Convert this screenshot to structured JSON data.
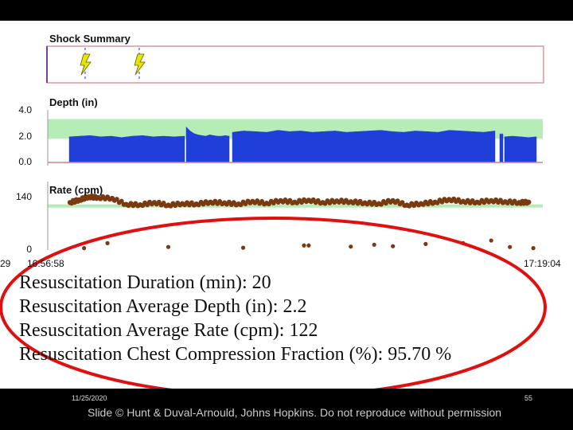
{
  "colors": {
    "depth_fill": "#1f3fd8",
    "target_band": "#b6ecb6",
    "rate_points": "#7a3a10",
    "frame_line": "#d08080",
    "shock_icon": "#e6e600",
    "highlight_ellipse": "#e01010"
  },
  "chart_data": [
    {
      "type": "line",
      "title": "Shock Summary",
      "shock_markers": [
        {
          "icon": "lightning-bolt-icon"
        },
        {
          "icon": "lightning-bolt-icon"
        }
      ]
    },
    {
      "type": "area",
      "title": "Depth (in)",
      "yticks": [
        "4.0",
        "2.0",
        "0.0"
      ],
      "ylim": [
        0,
        4.0
      ],
      "target_band": [
        1.8,
        3.3
      ],
      "segments": [
        {
          "values": [
            1.95,
            2.0,
            2.05,
            1.95,
            2.0,
            1.9,
            2.0,
            2.05,
            1.95,
            2.0,
            1.95,
            2.0
          ]
        },
        {
          "values": [
            2.7,
            2.4,
            2.2,
            2.1,
            2.05,
            2.0,
            2.1,
            2.05,
            2.0,
            2.0,
            2.05,
            2.0
          ]
        },
        {
          "values": [
            2.3,
            2.4,
            2.35,
            2.3,
            2.45,
            2.35,
            2.4,
            2.3,
            2.35,
            2.4,
            2.3,
            2.35,
            2.4,
            2.45,
            2.35,
            2.3,
            2.4,
            2.35,
            2.3,
            2.45,
            2.4,
            2.35,
            2.3,
            2.4
          ]
        },
        {
          "values": [
            2.15,
            2.2,
            2.1,
            2.2,
            2.15
          ]
        },
        {
          "values": [
            1.95,
            2.0,
            1.95,
            1.9,
            1.95
          ]
        }
      ]
    },
    {
      "type": "scatter",
      "title": "Rate (cpm)",
      "yticks": [
        "140",
        "0"
      ],
      "ylim": [
        0,
        180
      ],
      "target_band": [
        115,
        120
      ],
      "rate_main": [
        [
          0.0,
          125
        ],
        [
          0.02,
          132
        ],
        [
          0.04,
          140
        ],
        [
          0.06,
          138
        ],
        [
          0.09,
          136
        ],
        [
          0.12,
          120
        ],
        [
          0.15,
          119
        ],
        [
          0.18,
          125
        ],
        [
          0.21,
          118
        ],
        [
          0.24,
          122
        ],
        [
          0.27,
          121
        ],
        [
          0.3,
          126
        ],
        [
          0.33,
          124
        ],
        [
          0.36,
          121
        ],
        [
          0.39,
          128
        ],
        [
          0.42,
          123
        ],
        [
          0.45,
          130
        ],
        [
          0.48,
          126
        ],
        [
          0.51,
          131
        ],
        [
          0.54,
          125
        ],
        [
          0.57,
          129
        ],
        [
          0.6,
          127
        ],
        [
          0.63,
          124
        ],
        [
          0.66,
          122
        ],
        [
          0.69,
          130
        ],
        [
          0.72,
          118
        ],
        [
          0.75,
          122
        ],
        [
          0.78,
          126
        ],
        [
          0.81,
          133
        ],
        [
          0.84,
          128
        ],
        [
          0.87,
          126
        ],
        [
          0.9,
          130
        ],
        [
          0.93,
          127
        ],
        [
          0.96,
          125
        ],
        [
          0.98,
          126
        ]
      ],
      "rate_outliers": [
        [
          0.03,
          5
        ],
        [
          0.08,
          18
        ],
        [
          0.21,
          8
        ],
        [
          0.37,
          6
        ],
        [
          0.5,
          12
        ],
        [
          0.51,
          12
        ],
        [
          0.6,
          9
        ],
        [
          0.65,
          14
        ],
        [
          0.69,
          10
        ],
        [
          0.76,
          16
        ],
        [
          0.84,
          18
        ],
        [
          0.9,
          25
        ],
        [
          0.94,
          8
        ],
        [
          0.99,
          5
        ]
      ]
    }
  ],
  "time_labels": {
    "left_cut": "29",
    "start": "16:56:58",
    "end": "17:19:04"
  },
  "stats": [
    "Resuscitation Duration (min): 20",
    "Resuscitation Average Depth (in): 2.2",
    "Resuscitation Average Rate (cpm): 122",
    "Resuscitation Chest Compression Fraction (%): 95.70 %"
  ],
  "footer": {
    "date": "11/25/2020",
    "page": "55",
    "copyright": "Slide © Hunt & Duval-Arnould, Johns Hopkins. Do not reproduce without permission"
  }
}
